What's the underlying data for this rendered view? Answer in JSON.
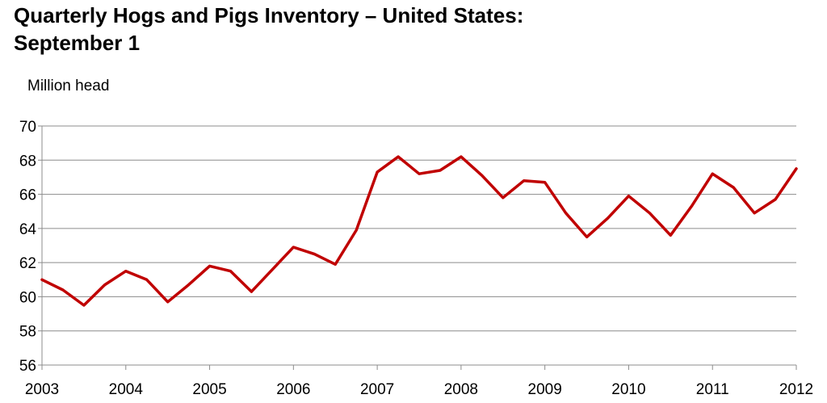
{
  "chart_data": {
    "type": "line",
    "title_lines": [
      "Quarterly Hogs and Pigs Inventory – United States:",
      "September 1"
    ],
    "ylabel": "Million head",
    "xlabel": "",
    "ylim": [
      56,
      70
    ],
    "yticks": [
      56,
      58,
      60,
      62,
      64,
      66,
      68,
      70
    ],
    "xlim": [
      2003,
      2012
    ],
    "xticks": [
      "2003",
      "2004",
      "2005",
      "2006",
      "2007",
      "2008",
      "2009",
      "2010",
      "2011",
      "2012"
    ],
    "grid": "horizontal",
    "legend": "none",
    "line_color": "#c00000",
    "series": [
      {
        "x": [
          2003.0,
          2003.25,
          2003.5,
          2003.75,
          2004.0,
          2004.25,
          2004.5,
          2004.75,
          2005.0,
          2005.25,
          2005.5,
          2005.75,
          2006.0,
          2006.25,
          2006.5,
          2006.75,
          2007.0,
          2007.25,
          2007.5,
          2007.75,
          2008.0,
          2008.25,
          2008.5,
          2008.75,
          2009.0,
          2009.25,
          2009.5,
          2009.75,
          2010.0,
          2010.25,
          2010.5,
          2010.75,
          2011.0,
          2011.25,
          2011.5,
          2011.75,
          2012.0
        ],
        "values": [
          61.0,
          60.4,
          59.5,
          60.7,
          61.5,
          61.0,
          59.7,
          60.7,
          61.8,
          61.5,
          60.3,
          61.6,
          62.9,
          62.5,
          61.9,
          63.9,
          67.3,
          68.2,
          67.2,
          67.4,
          68.2,
          67.1,
          65.8,
          66.8,
          66.7,
          64.9,
          63.5,
          64.6,
          65.9,
          64.9,
          63.6,
          65.3,
          67.2,
          66.4,
          64.9,
          65.7,
          67.5
        ]
      }
    ]
  }
}
